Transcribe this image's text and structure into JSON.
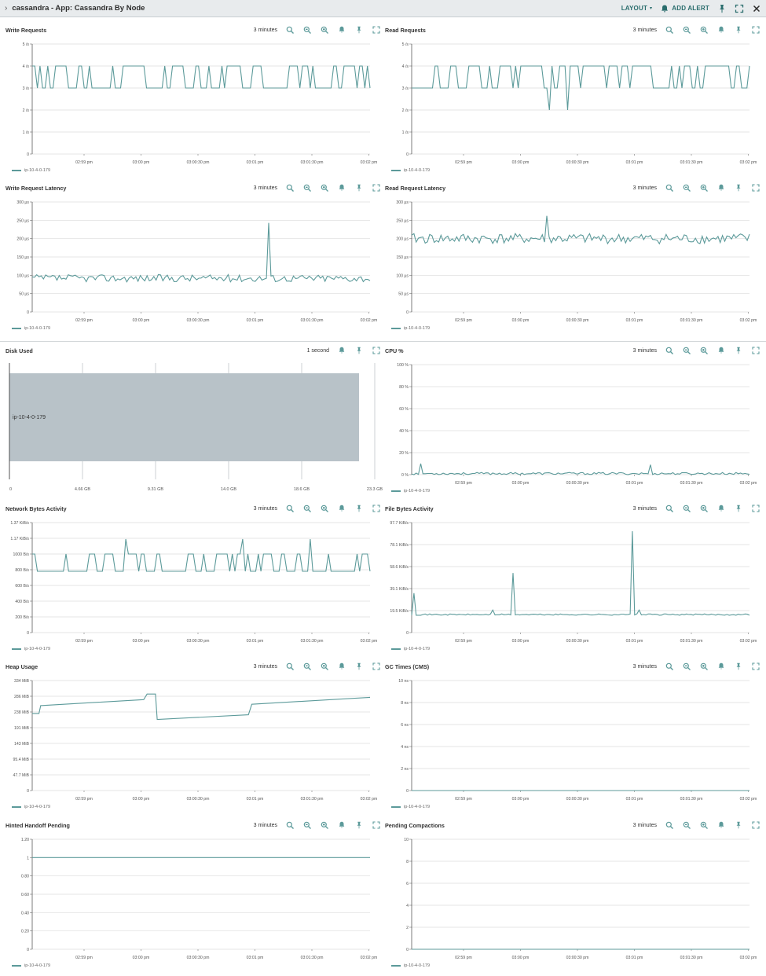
{
  "header": {
    "title": "cassandra - App: Cassandra By Node",
    "layout_label": "LAYOUT",
    "add_alert_label": "ADD ALERT"
  },
  "time_ticks": [
    "02:59 pm",
    "03:00 pm",
    "03:00:30 pm",
    "03:01 pm",
    "03:01:30 pm",
    "03:02 pm"
  ],
  "legend_name": "ip-10-4-0-179",
  "colors": {
    "series": "#5c9a9a",
    "accent": "#2a6d6d",
    "bar_fill": "#b8c2c8",
    "grid": "#dcdcdc"
  },
  "panels": [
    {
      "id": "write-requests",
      "title": "Write Requests",
      "range": "3 minutes",
      "chart_data": {
        "type": "line",
        "ylim": [
          0,
          5
        ],
        "yticks": [
          "0",
          "1 /s",
          "2 /s",
          "3 /s",
          "4 /s",
          "5 /s"
        ],
        "seed": 11,
        "pattern": "toggle",
        "low": 3,
        "high": 4,
        "spikes": []
      }
    },
    {
      "id": "read-requests",
      "title": "Read Requests",
      "range": "3 minutes",
      "chart_data": {
        "type": "line",
        "ylim": [
          0,
          5
        ],
        "yticks": [
          "0",
          "1 /s",
          "2 /s",
          "3 /s",
          "4 /s",
          "5 /s"
        ],
        "seed": 23,
        "pattern": "toggle",
        "low": 3,
        "high": 4,
        "spikes": [
          [
            0.41,
            2
          ],
          [
            0.46,
            2
          ]
        ]
      }
    },
    {
      "id": "write-request-latency",
      "title": "Write Request Latency",
      "range": "3 minutes",
      "chart_data": {
        "type": "line",
        "ylim": [
          0,
          300
        ],
        "yticks": [
          "0",
          "50 µs",
          "100 µs",
          "150 µs",
          "200 µs",
          "250 µs",
          "300 µs"
        ],
        "seed": 37,
        "pattern": "noise",
        "base": 92,
        "amp": 10,
        "spikes": [
          [
            0.7,
            243
          ]
        ]
      }
    },
    {
      "id": "read-request-latency",
      "title": "Read Request Latency",
      "range": "3 minutes",
      "chart_data": {
        "type": "line",
        "ylim": [
          0,
          300
        ],
        "yticks": [
          "0",
          "50 µs",
          "100 µs",
          "150 µs",
          "200 µs",
          "250 µs",
          "300 µs"
        ],
        "seed": 41,
        "pattern": "noise",
        "base": 200,
        "amp": 14,
        "spikes": [
          [
            0.4,
            262
          ]
        ]
      }
    },
    {
      "id": "disk-used",
      "title": "Disk Used",
      "range": "1 second",
      "chart_data": {
        "type": "bar",
        "orientation": "horizontal",
        "categories": [
          "ip-10-4-0-179"
        ],
        "values": [
          22.3
        ],
        "xlim": [
          0,
          23.3
        ],
        "xticks": [
          "0",
          "4.66 GB",
          "9.31 GB",
          "14.0 GB",
          "18.6 GB",
          "23.3 GB"
        ]
      }
    },
    {
      "id": "cpu-percent",
      "title": "CPU %",
      "range": "3 minutes",
      "chart_data": {
        "type": "line",
        "ylim": [
          0,
          100
        ],
        "yticks": [
          "0 %",
          "20 %",
          "40 %",
          "60 %",
          "80 %",
          "100 %"
        ],
        "seed": 53,
        "pattern": "noise",
        "base": 1,
        "amp": 1,
        "spikes": [
          [
            0.03,
            10
          ],
          [
            0.71,
            9
          ]
        ]
      }
    },
    {
      "id": "network-bytes-activity",
      "title": "Network Bytes Activity",
      "range": "3 minutes",
      "chart_data": {
        "type": "line",
        "ylim": [
          0,
          1400
        ],
        "yticks": [
          "0",
          "200 B/s",
          "400 B/s",
          "600 B/s",
          "800 B/s",
          "1000 B/s",
          "1.17 KiB/s",
          "1.37 KiB/s"
        ],
        "seed": 61,
        "pattern": "toggle",
        "low": 780,
        "high": 1000,
        "spikes": [
          [
            0.28,
            1190
          ],
          [
            0.62,
            1190
          ],
          [
            0.82,
            1190
          ]
        ]
      }
    },
    {
      "id": "file-bytes-activity",
      "title": "File Bytes Activity",
      "range": "3 minutes",
      "chart_data": {
        "type": "line",
        "ylim": [
          0,
          97.7
        ],
        "yticks": [
          "0",
          "19.5 KiB/s",
          "39.1 KiB/s",
          "58.6 KiB/s",
          "78.1 KiB/s",
          "97.7 KiB/s"
        ],
        "seed": 71,
        "pattern": "noise",
        "base": 16,
        "amp": 0.6,
        "spikes": [
          [
            0.01,
            35
          ],
          [
            0.24,
            20
          ],
          [
            0.3,
            53
          ],
          [
            0.31,
            35
          ],
          [
            0.65,
            90
          ],
          [
            0.67,
            20
          ]
        ]
      }
    },
    {
      "id": "heap-usage",
      "title": "Heap Usage",
      "range": "3 minutes",
      "chart_data": {
        "type": "line",
        "ylim": [
          0,
          334
        ],
        "yticks": [
          "0",
          "47.7 MiB",
          "95.4 MiB",
          "143 MiB",
          "191 MiB",
          "238 MiB",
          "286 MiB",
          "334 MiB"
        ],
        "pattern": "steps",
        "steps": [
          [
            0,
            234
          ],
          [
            0.02,
            234
          ],
          [
            0.025,
            258
          ],
          [
            0.33,
            276
          ],
          [
            0.34,
            293
          ],
          [
            0.365,
            293
          ],
          [
            0.37,
            216
          ],
          [
            0.64,
            230
          ],
          [
            0.65,
            262
          ],
          [
            1.0,
            283
          ]
        ]
      }
    },
    {
      "id": "gc-times-cms",
      "title": "GC Times (CMS)",
      "range": "3 minutes",
      "chart_data": {
        "type": "line",
        "ylim": [
          0,
          10
        ],
        "yticks": [
          "0",
          "2 ns",
          "4 ns",
          "6 ns",
          "8 ns",
          "10 ns"
        ],
        "pattern": "flat",
        "value": 0
      }
    },
    {
      "id": "hinted-handoff-pending",
      "title": "Hinted Handoff Pending",
      "range": "3 minutes",
      "chart_data": {
        "type": "line",
        "ylim": [
          0,
          1.2
        ],
        "yticks": [
          "0",
          "0.20",
          "0.40",
          "0.60",
          "0.80",
          "1",
          "1.20"
        ],
        "pattern": "flat",
        "value": 1
      }
    },
    {
      "id": "pending-compactions",
      "title": "Pending Compactions",
      "range": "3 minutes",
      "chart_data": {
        "type": "line",
        "ylim": [
          0,
          10
        ],
        "yticks": [
          "0",
          "2",
          "4",
          "6",
          "8",
          "10"
        ],
        "pattern": "flat",
        "value": 0
      }
    }
  ]
}
